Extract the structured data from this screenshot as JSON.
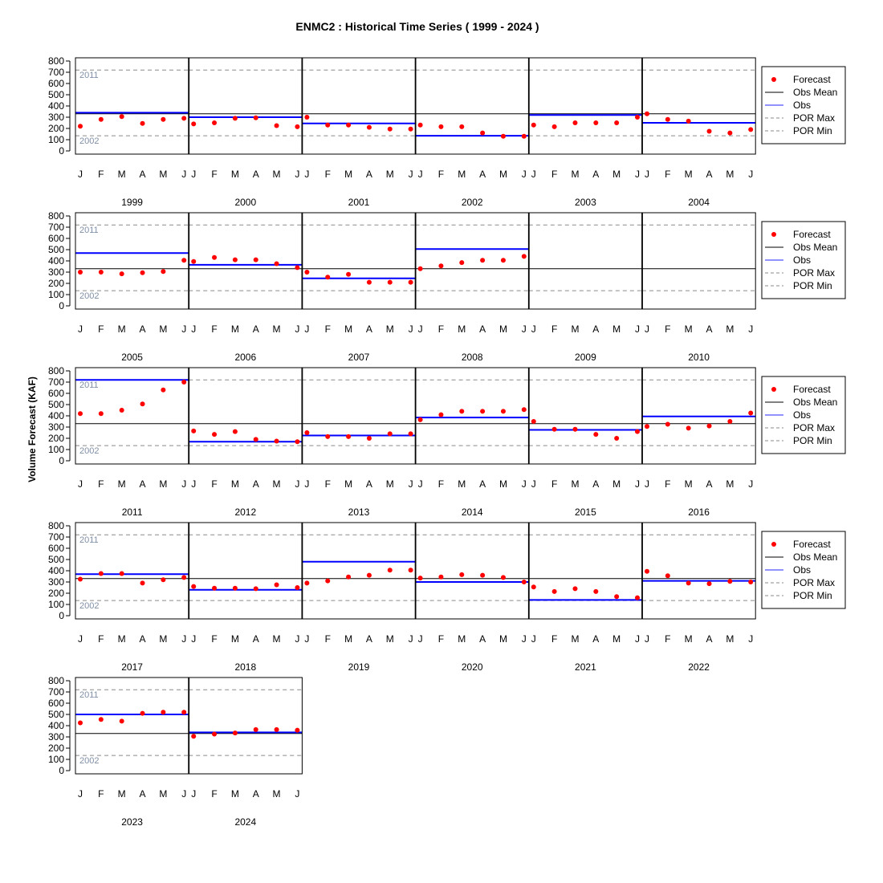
{
  "chart_data": {
    "type": "scatter",
    "title": "ENMC2 : Historical Time Series ( 1999 - 2024 )",
    "ylabel": "Volume Forecast (KAF)",
    "ylim": [
      0,
      800
    ],
    "yticks": [
      0,
      100,
      200,
      300,
      400,
      500,
      600,
      700,
      800
    ],
    "months": [
      "J",
      "F",
      "M",
      "A",
      "M",
      "J"
    ],
    "obs_mean": 330,
    "por_max": {
      "value": 720,
      "label": "2011"
    },
    "por_min": {
      "value": 135,
      "label": "2002"
    },
    "legend": [
      "Forecast",
      "Obs Mean",
      "Obs",
      "POR Max",
      "POR Min"
    ],
    "legend_position": "right",
    "colors": {
      "forecast": "#ff0000",
      "obs": "#0000ff",
      "obs_mean": "#000000",
      "por": "#8a8a8a",
      "por_label": "#7f8fa6"
    },
    "years": [
      {
        "year": "1999",
        "obs": 340,
        "forecast": [
          220,
          280,
          305,
          245,
          280,
          290
        ]
      },
      {
        "year": "2000",
        "obs": 300,
        "forecast": [
          240,
          250,
          290,
          295,
          225,
          215
        ]
      },
      {
        "year": "2001",
        "obs": 245,
        "forecast": [
          300,
          230,
          230,
          210,
          195,
          195
        ]
      },
      {
        "year": "2002",
        "obs": 135,
        "forecast": [
          230,
          215,
          215,
          160,
          130,
          130
        ]
      },
      {
        "year": "2003",
        "obs": 320,
        "forecast": [
          230,
          215,
          250,
          250,
          250,
          300
        ]
      },
      {
        "year": "2004",
        "obs": 250,
        "forecast": [
          330,
          280,
          265,
          175,
          160,
          190
        ]
      },
      {
        "year": "2005",
        "obs": 470,
        "forecast": [
          300,
          300,
          285,
          295,
          305,
          405
        ]
      },
      {
        "year": "2006",
        "obs": 365,
        "forecast": [
          395,
          430,
          410,
          410,
          375,
          340
        ]
      },
      {
        "year": "2007",
        "obs": 245,
        "forecast": [
          300,
          255,
          280,
          210,
          210,
          210
        ]
      },
      {
        "year": "2008",
        "obs": 505,
        "forecast": [
          330,
          355,
          385,
          405,
          405,
          440
        ]
      },
      {
        "year": "2009",
        "obs": null,
        "forecast": []
      },
      {
        "year": "2010",
        "obs": null,
        "forecast": []
      },
      {
        "year": "2011",
        "obs": 720,
        "forecast": [
          420,
          420,
          450,
          505,
          630,
          700
        ]
      },
      {
        "year": "2012",
        "obs": 170,
        "forecast": [
          265,
          235,
          260,
          190,
          175,
          170
        ]
      },
      {
        "year": "2013",
        "obs": 225,
        "forecast": [
          250,
          215,
          215,
          200,
          240,
          240
        ]
      },
      {
        "year": "2014",
        "obs": 385,
        "forecast": [
          365,
          410,
          440,
          440,
          440,
          455
        ]
      },
      {
        "year": "2015",
        "obs": 275,
        "forecast": [
          350,
          280,
          280,
          235,
          200,
          260
        ]
      },
      {
        "year": "2016",
        "obs": 395,
        "forecast": [
          305,
          325,
          290,
          310,
          350,
          425
        ]
      },
      {
        "year": "2017",
        "obs": 370,
        "forecast": [
          325,
          375,
          375,
          290,
          320,
          340
        ]
      },
      {
        "year": "2018",
        "obs": 230,
        "forecast": [
          260,
          245,
          245,
          240,
          275,
          250
        ]
      },
      {
        "year": "2019",
        "obs": 480,
        "forecast": [
          290,
          310,
          345,
          360,
          405,
          405
        ]
      },
      {
        "year": "2020",
        "obs": 300,
        "forecast": [
          335,
          345,
          365,
          360,
          340,
          300
        ]
      },
      {
        "year": "2021",
        "obs": 140,
        "forecast": [
          255,
          215,
          240,
          215,
          170,
          160
        ]
      },
      {
        "year": "2022",
        "obs": 310,
        "forecast": [
          395,
          355,
          290,
          285,
          305,
          300
        ]
      },
      {
        "year": "2023",
        "obs": 500,
        "forecast": [
          425,
          455,
          440,
          510,
          520,
          520
        ]
      },
      {
        "year": "2024",
        "obs": 340,
        "forecast": [
          305,
          325,
          335,
          365,
          365,
          360
        ]
      }
    ]
  }
}
